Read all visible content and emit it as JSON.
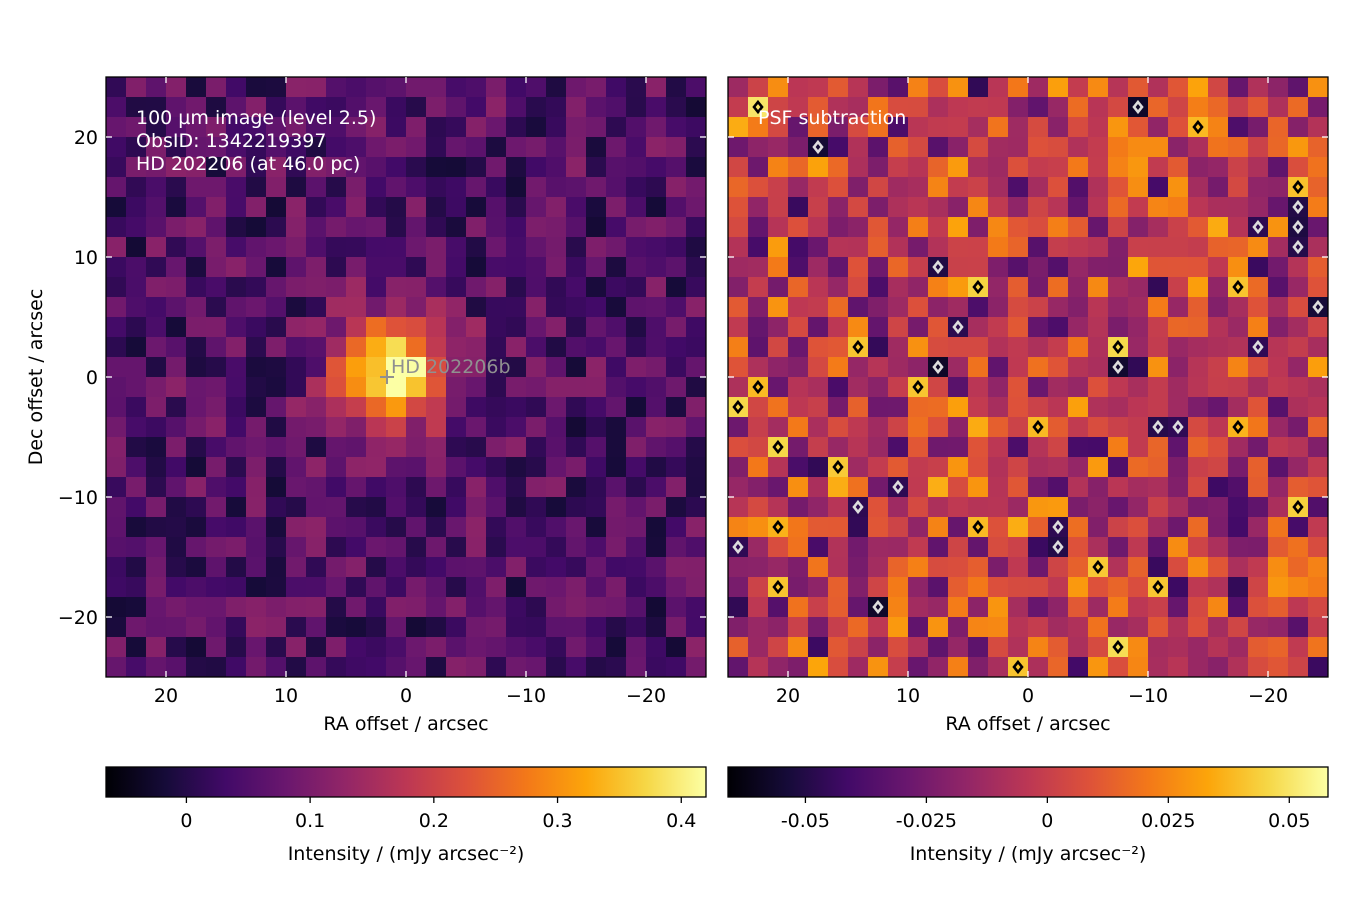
{
  "chart_data": [
    {
      "type": "heatmap",
      "panel": "left",
      "annotation_lines": [
        "100 µm image (level 2.5)",
        "ObsID: 1342219397",
        "HD 202206 (at 46.0 pc)"
      ],
      "marker_label": "HD 202206b",
      "marker_position_arcsec": {
        "ra": 1.6,
        "dec": 0.1
      },
      "xlabel": "RA offset / arcsec",
      "ylabel": "Dec offset / arcsec",
      "xlim": [
        25,
        -25
      ],
      "ylim": [
        -25,
        25
      ],
      "xticks": [
        20,
        10,
        0,
        -10,
        -20
      ],
      "xtick_labels": [
        "20",
        "10",
        "0",
        "−10",
        "−20"
      ],
      "yticks": [
        20,
        10,
        0,
        -10,
        -20
      ],
      "ytick_labels": [
        "20",
        "10",
        "0",
        "−10",
        "−20"
      ],
      "grid_shape": [
        30,
        30
      ],
      "colormap": "inferno",
      "value_range": [
        -0.065,
        0.42
      ],
      "source_peak": {
        "ra": 1.0,
        "dec": 0.5,
        "peak": 0.42,
        "background": 0.05
      },
      "colorbar": {
        "label": "Intensity / (mJy arcsec⁻²)",
        "ticks": [
          0,
          0.1,
          0.2,
          0.3,
          0.4
        ],
        "tick_labels": [
          "0",
          "0.1",
          "0.2",
          "0.3",
          "0.4"
        ],
        "range": [
          -0.065,
          0.42
        ]
      }
    },
    {
      "type": "heatmap",
      "panel": "right",
      "annotation_lines": [
        "PSF subtraction"
      ],
      "xlabel": "RA offset / arcsec",
      "xlim": [
        25,
        -25
      ],
      "ylim": [
        -25,
        25
      ],
      "xticks": [
        20,
        10,
        0,
        -10,
        -20
      ],
      "xtick_labels": [
        "20",
        "10",
        "0",
        "−10",
        "−20"
      ],
      "grid_shape": [
        30,
        30
      ],
      "colormap": "inferno",
      "value_range": [
        -0.066,
        0.058
      ],
      "contours": {
        "positive_color": "#000000",
        "negative_color": "#dddddd"
      },
      "colorbar": {
        "label": "Intensity / (mJy arcsec⁻²)",
        "ticks": [
          -0.05,
          -0.025,
          0,
          0.025,
          0.05
        ],
        "tick_labels": [
          "-0.05",
          "-0.025",
          "0",
          "0.025",
          "0.05"
        ],
        "range": [
          -0.066,
          0.058
        ]
      }
    }
  ]
}
